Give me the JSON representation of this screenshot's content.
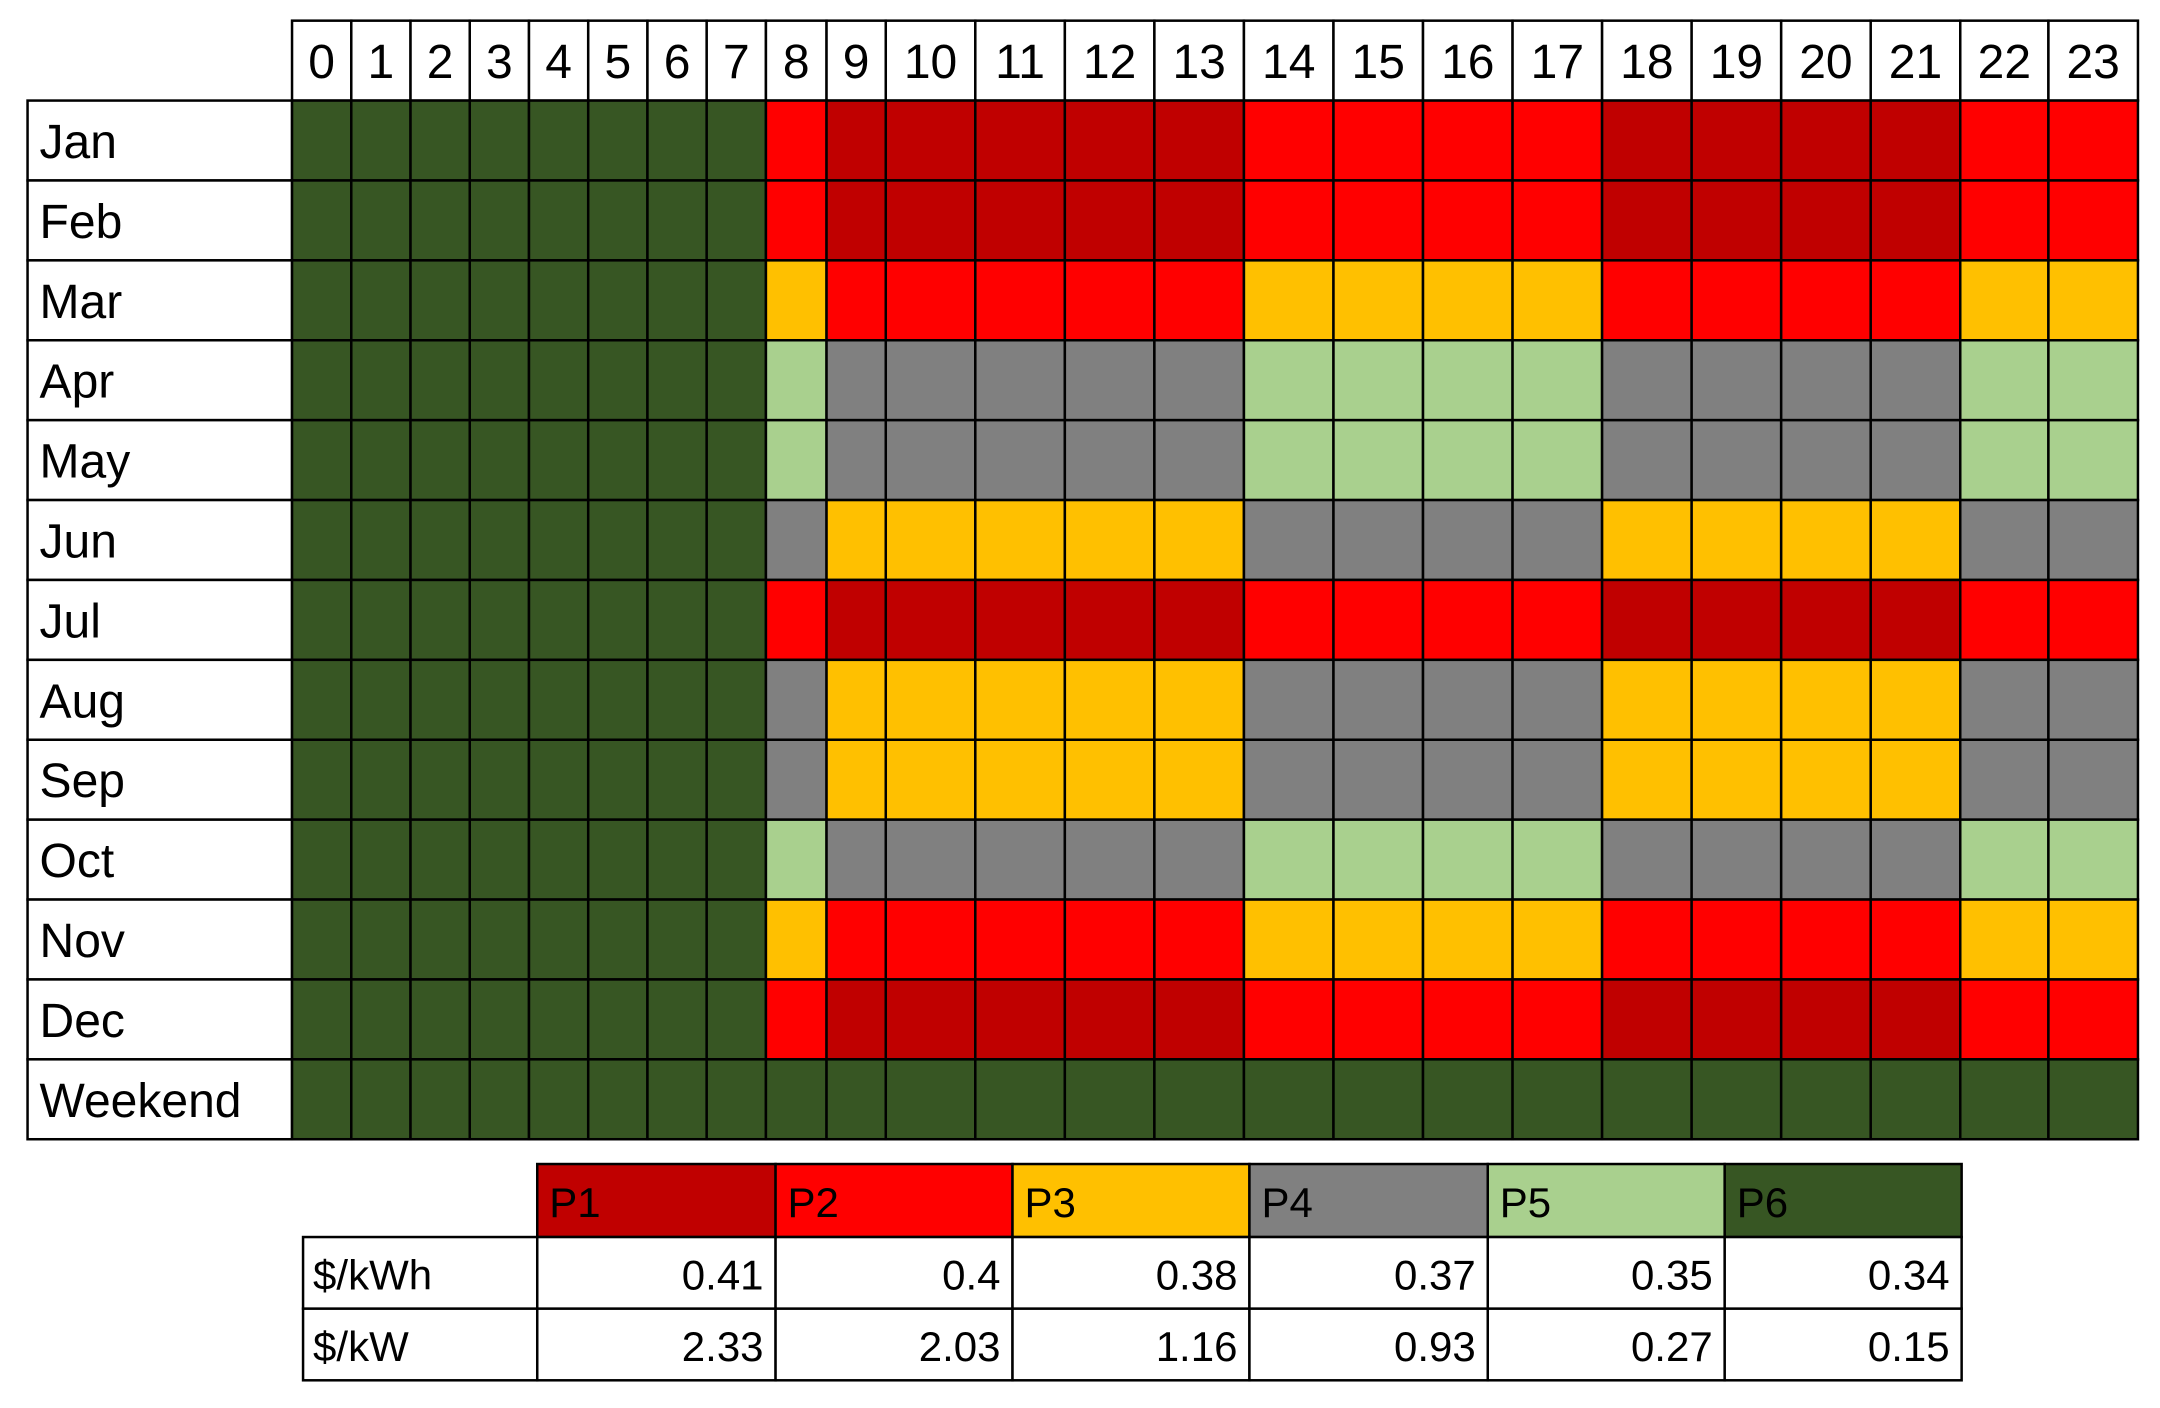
{
  "hours": [
    "0",
    "1",
    "2",
    "3",
    "4",
    "5",
    "6",
    "7",
    "8",
    "9",
    "10",
    "11",
    "12",
    "13",
    "14",
    "15",
    "16",
    "17",
    "18",
    "19",
    "20",
    "21",
    "22",
    "23"
  ],
  "rows": [
    {
      "label": "Jan",
      "periods": [
        "P6",
        "P6",
        "P6",
        "P6",
        "P6",
        "P6",
        "P6",
        "P6",
        "P2",
        "P1",
        "P1",
        "P1",
        "P1",
        "P1",
        "P2",
        "P2",
        "P2",
        "P2",
        "P1",
        "P1",
        "P1",
        "P1",
        "P2",
        "P2"
      ]
    },
    {
      "label": "Feb",
      "periods": [
        "P6",
        "P6",
        "P6",
        "P6",
        "P6",
        "P6",
        "P6",
        "P6",
        "P2",
        "P1",
        "P1",
        "P1",
        "P1",
        "P1",
        "P2",
        "P2",
        "P2",
        "P2",
        "P1",
        "P1",
        "P1",
        "P1",
        "P2",
        "P2"
      ]
    },
    {
      "label": "Mar",
      "periods": [
        "P6",
        "P6",
        "P6",
        "P6",
        "P6",
        "P6",
        "P6",
        "P6",
        "P3",
        "P2",
        "P2",
        "P2",
        "P2",
        "P2",
        "P3",
        "P3",
        "P3",
        "P3",
        "P2",
        "P2",
        "P2",
        "P2",
        "P3",
        "P3"
      ]
    },
    {
      "label": "Apr",
      "periods": [
        "P6",
        "P6",
        "P6",
        "P6",
        "P6",
        "P6",
        "P6",
        "P6",
        "P5",
        "P4",
        "P4",
        "P4",
        "P4",
        "P4",
        "P5",
        "P5",
        "P5",
        "P5",
        "P4",
        "P4",
        "P4",
        "P4",
        "P5",
        "P5"
      ]
    },
    {
      "label": "May",
      "periods": [
        "P6",
        "P6",
        "P6",
        "P6",
        "P6",
        "P6",
        "P6",
        "P6",
        "P5",
        "P4",
        "P4",
        "P4",
        "P4",
        "P4",
        "P5",
        "P5",
        "P5",
        "P5",
        "P4",
        "P4",
        "P4",
        "P4",
        "P5",
        "P5"
      ]
    },
    {
      "label": "Jun",
      "periods": [
        "P6",
        "P6",
        "P6",
        "P6",
        "P6",
        "P6",
        "P6",
        "P6",
        "P4",
        "P3",
        "P3",
        "P3",
        "P3",
        "P3",
        "P4",
        "P4",
        "P4",
        "P4",
        "P3",
        "P3",
        "P3",
        "P3",
        "P4",
        "P4"
      ]
    },
    {
      "label": "Jul",
      "periods": [
        "P6",
        "P6",
        "P6",
        "P6",
        "P6",
        "P6",
        "P6",
        "P6",
        "P2",
        "P1",
        "P1",
        "P1",
        "P1",
        "P1",
        "P2",
        "P2",
        "P2",
        "P2",
        "P1",
        "P1",
        "P1",
        "P1",
        "P2",
        "P2"
      ]
    },
    {
      "label": "Aug",
      "periods": [
        "P6",
        "P6",
        "P6",
        "P6",
        "P6",
        "P6",
        "P6",
        "P6",
        "P4",
        "P3",
        "P3",
        "P3",
        "P3",
        "P3",
        "P4",
        "P4",
        "P4",
        "P4",
        "P3",
        "P3",
        "P3",
        "P3",
        "P4",
        "P4"
      ]
    },
    {
      "label": "Sep",
      "periods": [
        "P6",
        "P6",
        "P6",
        "P6",
        "P6",
        "P6",
        "P6",
        "P6",
        "P4",
        "P3",
        "P3",
        "P3",
        "P3",
        "P3",
        "P4",
        "P4",
        "P4",
        "P4",
        "P3",
        "P3",
        "P3",
        "P3",
        "P4",
        "P4"
      ]
    },
    {
      "label": "Oct",
      "periods": [
        "P6",
        "P6",
        "P6",
        "P6",
        "P6",
        "P6",
        "P6",
        "P6",
        "P5",
        "P4",
        "P4",
        "P4",
        "P4",
        "P4",
        "P5",
        "P5",
        "P5",
        "P5",
        "P4",
        "P4",
        "P4",
        "P4",
        "P5",
        "P5"
      ]
    },
    {
      "label": "Nov",
      "periods": [
        "P6",
        "P6",
        "P6",
        "P6",
        "P6",
        "P6",
        "P6",
        "P6",
        "P3",
        "P2",
        "P2",
        "P2",
        "P2",
        "P2",
        "P3",
        "P3",
        "P3",
        "P3",
        "P2",
        "P2",
        "P2",
        "P2",
        "P3",
        "P3"
      ]
    },
    {
      "label": "Dec",
      "periods": [
        "P6",
        "P6",
        "P6",
        "P6",
        "P6",
        "P6",
        "P6",
        "P6",
        "P2",
        "P1",
        "P1",
        "P1",
        "P1",
        "P1",
        "P2",
        "P2",
        "P2",
        "P2",
        "P1",
        "P1",
        "P1",
        "P1",
        "P2",
        "P2"
      ]
    },
    {
      "label": "Weekend",
      "periods": [
        "P6",
        "P6",
        "P6",
        "P6",
        "P6",
        "P6",
        "P6",
        "P6",
        "P6",
        "P6",
        "P6",
        "P6",
        "P6",
        "P6",
        "P6",
        "P6",
        "P6",
        "P6",
        "P6",
        "P6",
        "P6",
        "P6",
        "P6",
        "P6"
      ]
    }
  ],
  "legend": {
    "periods": [
      {
        "name": "P1",
        "color": "#c00000"
      },
      {
        "name": "P2",
        "color": "#ff0000"
      },
      {
        "name": "P3",
        "color": "#ffc000"
      },
      {
        "name": "P4",
        "color": "#808080"
      },
      {
        "name": "P5",
        "color": "#a9d08e"
      },
      {
        "name": "P6",
        "color": "#375623"
      }
    ],
    "rows": [
      {
        "label": "$/kWh",
        "values": [
          0.41,
          0.4,
          0.38,
          0.37,
          0.35,
          0.34
        ]
      },
      {
        "label": "$/kW",
        "values": [
          2.33,
          2.03,
          1.16,
          0.93,
          0.27,
          0.15
        ]
      }
    ]
  }
}
